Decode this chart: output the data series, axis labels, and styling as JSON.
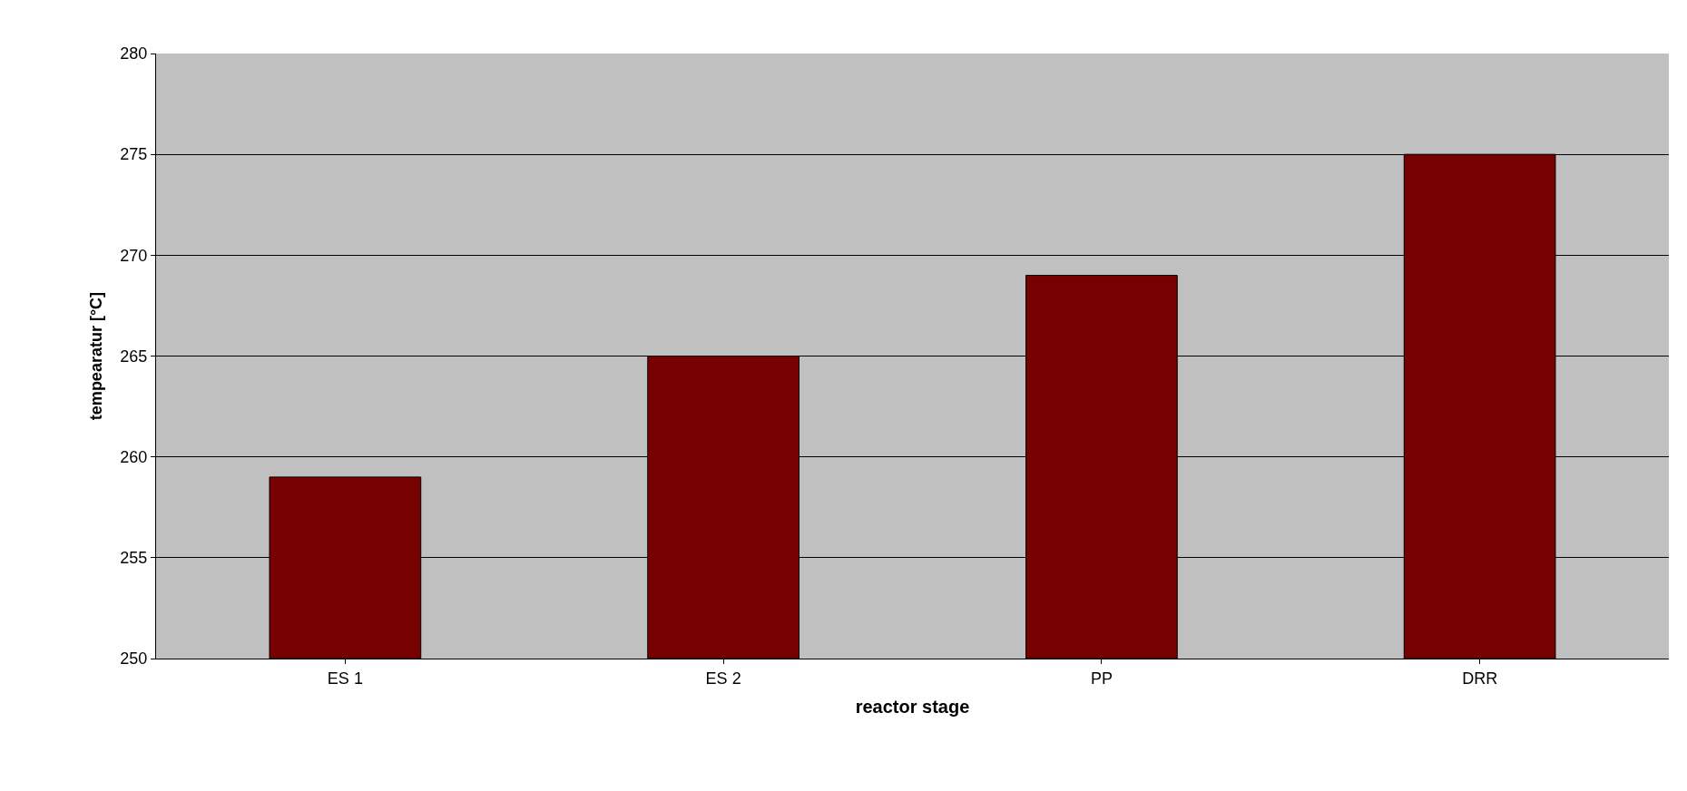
{
  "chart_data": {
    "type": "bar",
    "xlabel": "reactor stage",
    "ylabel": "tempearatur [°C]",
    "categories": [
      "ES 1",
      "ES 2",
      "PP",
      "DRR"
    ],
    "values": [
      259,
      265,
      269,
      275
    ],
    "color": "#770000",
    "ylim": [
      250,
      280
    ],
    "yticks": [
      250,
      255,
      260,
      265,
      270,
      275,
      280
    ],
    "grid": "y",
    "legend": false
  }
}
